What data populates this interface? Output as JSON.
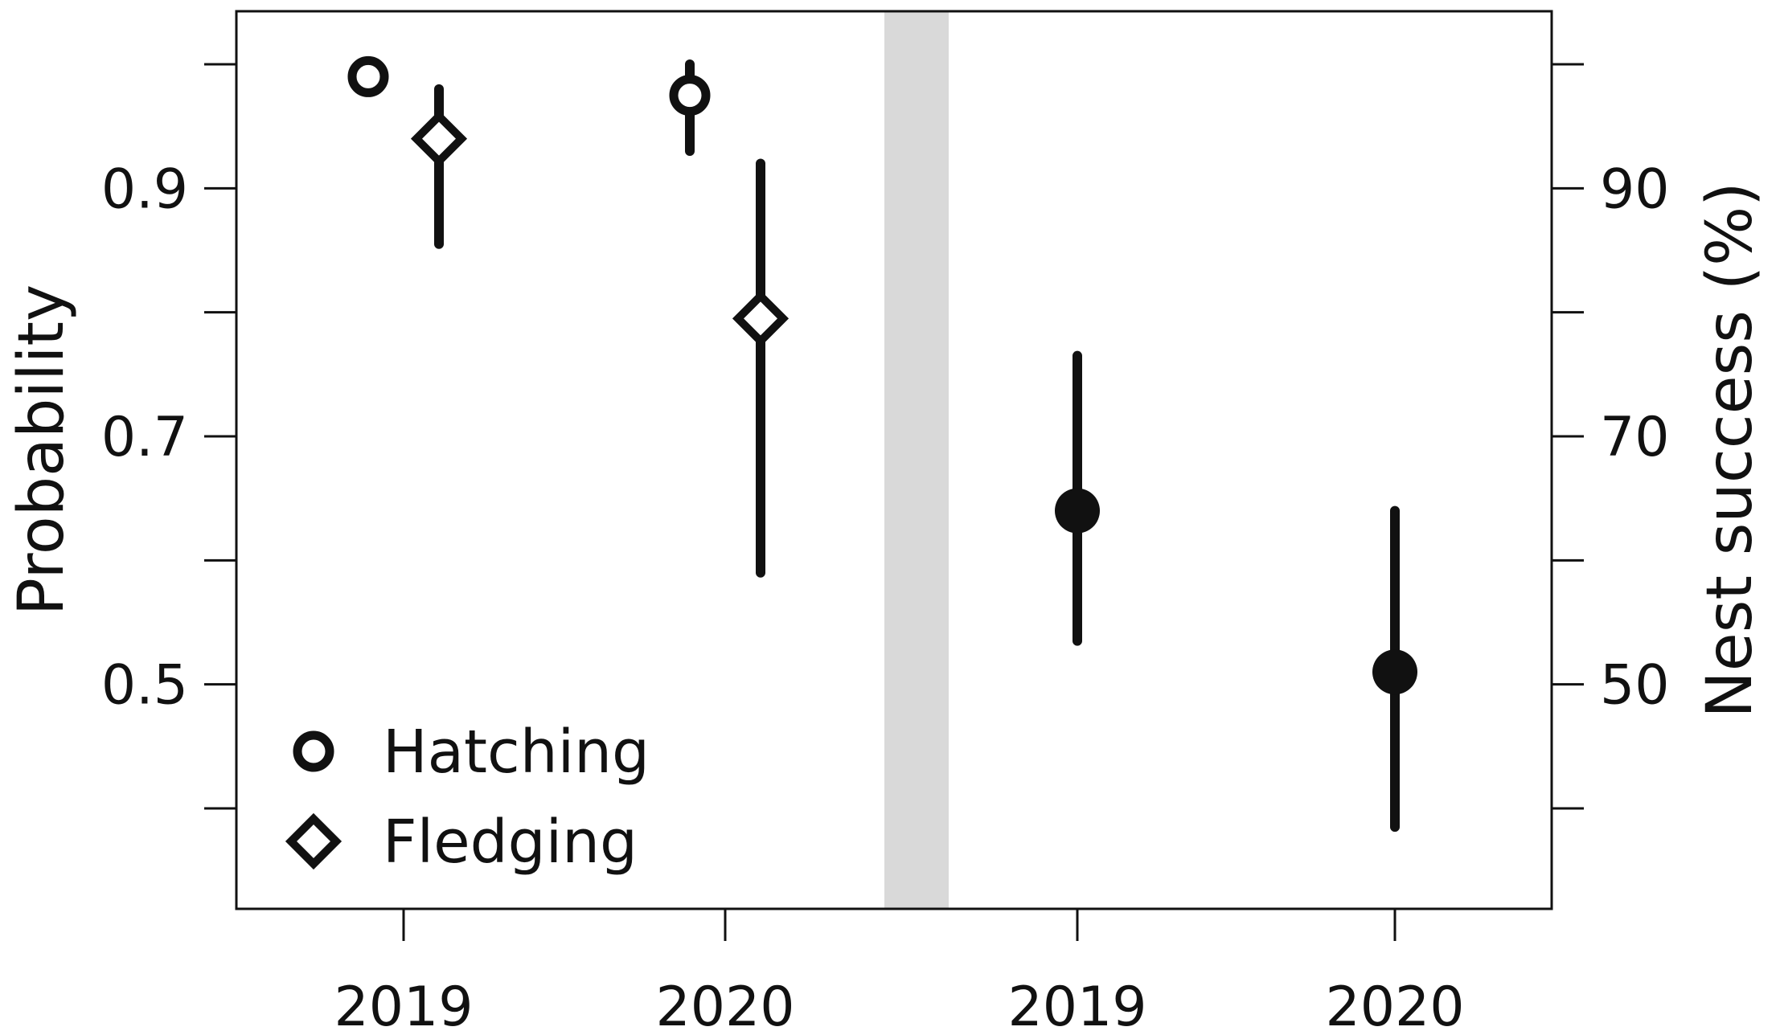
{
  "chart_data": {
    "type": "scatter",
    "title": "",
    "ylabel_left": "Probability",
    "ylabel_right": "Nest success (%)",
    "ylim_left": [
      0.3,
      1.045
    ],
    "ylim_right": [
      30,
      104.5
    ],
    "yticks_left": [
      0.5,
      0.7,
      0.9
    ],
    "yticks_left_minor": [
      0.4,
      0.6,
      0.8,
      1.0
    ],
    "yticks_right": [
      50,
      70,
      90
    ],
    "yticks_right_minor": [
      40,
      60,
      80,
      100
    ],
    "x_tick_labels": [
      "2019",
      "2020",
      "2019",
      "2020"
    ],
    "panels": [
      {
        "axis": "left",
        "series": [
          {
            "name": "Hatching",
            "marker": "circle-open",
            "points": [
              {
                "year": "2019",
                "estimate": 0.99,
                "lower": null,
                "upper": null
              },
              {
                "year": "2020",
                "estimate": 0.975,
                "lower": 0.93,
                "upper": 1.0
              }
            ]
          },
          {
            "name": "Fledging",
            "marker": "diamond-open",
            "points": [
              {
                "year": "2019",
                "estimate": 0.94,
                "lower": 0.855,
                "upper": 0.98
              },
              {
                "year": "2020",
                "estimate": 0.795,
                "lower": 0.59,
                "upper": 0.92
              }
            ]
          }
        ]
      },
      {
        "axis": "right",
        "series": [
          {
            "name": "",
            "marker": "circle-filled",
            "points": [
              {
                "year": "2019",
                "estimate": 64,
                "lower": 53.5,
                "upper": 76.5
              },
              {
                "year": "2020",
                "estimate": 51,
                "lower": 38.5,
                "upper": 64
              }
            ]
          }
        ]
      }
    ],
    "legend": {
      "position": "bottom-left",
      "entries": [
        {
          "label": "Hatching",
          "marker": "circle-open"
        },
        {
          "label": "Fledging",
          "marker": "diamond-open"
        }
      ]
    },
    "separator_color": "#d9d9d9",
    "marker_color": "#111111",
    "grid": false
  }
}
